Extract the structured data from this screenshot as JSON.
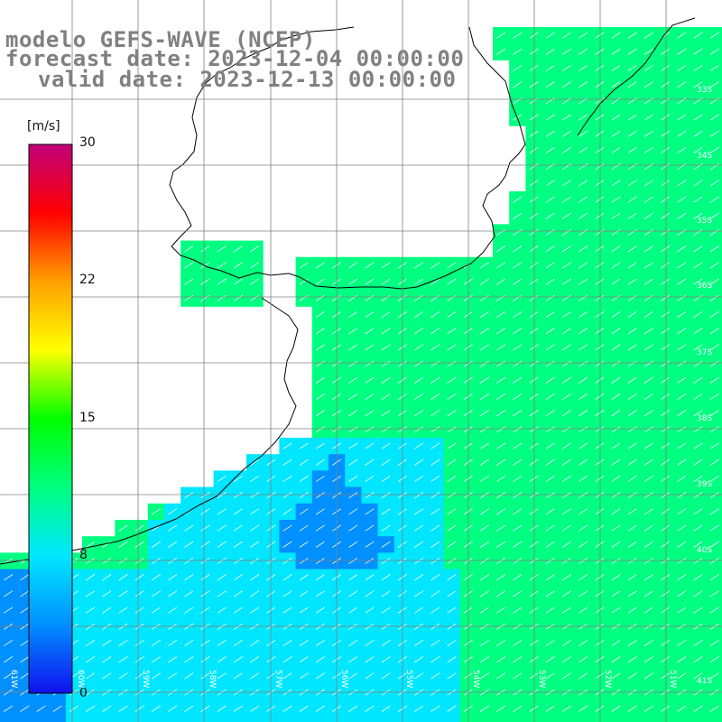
{
  "title": {
    "line1": "modelo GEFS-WAVE (NCEP)",
    "line2": "forecast date: 2023-12-04 00:00:00",
    "line3": "valid date: 2023-12-13 00:00:00"
  },
  "colorbar": {
    "unit": "[m/s]",
    "ticks": [
      "30",
      "22",
      "15",
      "8",
      "0"
    ],
    "stops": [
      "#1010ee",
      "#0090ff",
      "#00e6ff",
      "#00ff80",
      "#00ff00",
      "#ffff00",
      "#ffa000",
      "#ff0000",
      "#c0007a"
    ]
  },
  "grid": {
    "lat_labels": [
      "33S",
      "34S",
      "35S",
      "36S",
      "37S",
      "38S",
      "39S",
      "40S",
      "41S"
    ],
    "lon_labels": [
      "61W",
      "60W",
      "59W",
      "58W",
      "57W",
      "56W",
      "55W",
      "54W",
      "53W",
      "52W",
      "51W"
    ]
  },
  "colors": {
    "land": "#ffffff",
    "grid": "#808080",
    "coast": "#000000",
    "arrows": "#ffffff"
  }
}
